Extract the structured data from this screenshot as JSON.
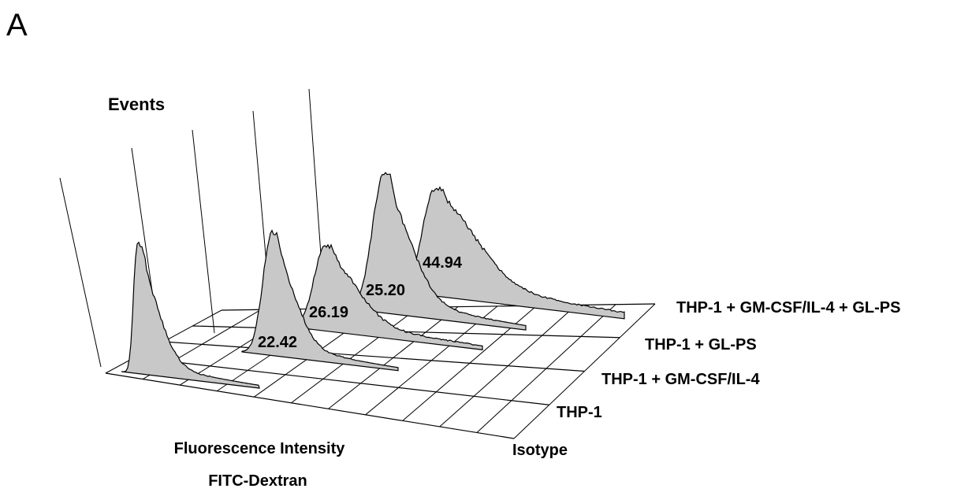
{
  "panel_label": "A",
  "chart_data": {
    "type": "area",
    "subtype": "3d-offset-histogram-overlay",
    "ylabel": "Events",
    "xlabel": "Fluorescence Intensity",
    "xlabel2": "FITC-Dextran",
    "series": [
      {
        "name": "Isotype",
        "value_label": ""
      },
      {
        "name": "THP-1",
        "value_label": "22.42"
      },
      {
        "name": "THP-1 + GM-CSF/IL-4",
        "value_label": "26.19"
      },
      {
        "name": "THP-1 + GL-PS",
        "value_label": "25.20"
      },
      {
        "name": "THP-1 + GM-CSF/IL-4 + GL-PS",
        "value_label": "44.94"
      }
    ],
    "colors": {
      "fill": "#c8c8c8",
      "line": "#000000"
    },
    "grid": true
  }
}
